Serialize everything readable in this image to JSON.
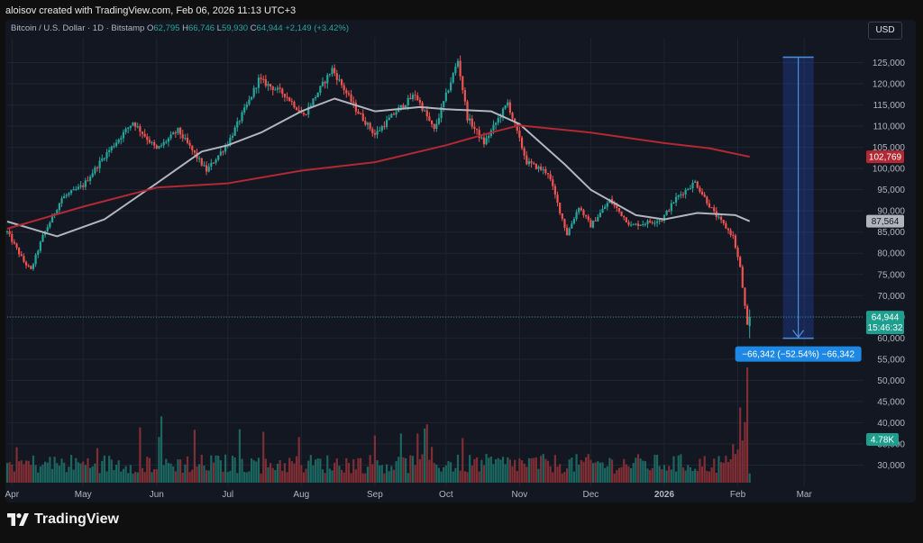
{
  "header": {
    "attribution": "aloisov created with TradingView.com, Feb 06, 2026 11:13 UTC+3"
  },
  "legend": {
    "symbol": "Bitcoin / U.S. Dollar · 1D · Bitstamp",
    "open_key": "O",
    "open": "62,795",
    "high_key": "H",
    "high": "66,746",
    "low_key": "L",
    "low": "59,930",
    "close_key": "C",
    "close": "64,944",
    "change": "+2,149 (+3.42%)"
  },
  "currency": "USD",
  "brand": {
    "name": "TradingView"
  },
  "colors": {
    "background": "#131722",
    "up": "#26a69a",
    "down": "#ef5350",
    "ma_short": "#b2b5be",
    "ma_long": "#b22833",
    "measure": "#2962ff"
  },
  "chart_data": {
    "type": "candlestick",
    "symbol": "BTCUSD",
    "interval": "1D",
    "y_axis": {
      "ticks": [
        30000,
        35000,
        40000,
        45000,
        50000,
        55000,
        60000,
        65000,
        70000,
        75000,
        80000,
        85000,
        90000,
        95000,
        100000,
        105000,
        110000,
        115000,
        120000,
        125000
      ],
      "tick_labels": [
        "30,000",
        "35,000",
        "40,000",
        "45,000",
        "50,000",
        "55,000",
        "60,000",
        "65,000",
        "70,000",
        "75,000",
        "80,000",
        "85,000",
        "90,000",
        "95,000",
        "100,000",
        "105,000",
        "110,000",
        "115,000",
        "120,000",
        "125,000"
      ],
      "range": [
        25000,
        130000
      ]
    },
    "x_axis": {
      "labels": [
        "Apr",
        "May",
        "Jun",
        "Jul",
        "Aug",
        "Sep",
        "Oct",
        "Nov",
        "Dec",
        "2026",
        "Feb",
        "Mar"
      ],
      "label_dates": [
        "2025-04-01",
        "2025-05-01",
        "2025-06-01",
        "2025-07-01",
        "2025-08-01",
        "2025-09-01",
        "2025-10-01",
        "2025-11-01",
        "2025-12-01",
        "2026-01-01",
        "2026-02-01",
        "2026-03-01"
      ],
      "bold_label": "2026",
      "range": [
        "2025-03-30",
        "2026-03-26"
      ]
    },
    "price_path": [
      [
        "2025-03-30",
        85000
      ],
      [
        "2025-04-06",
        78000
      ],
      [
        "2025-04-09",
        76000
      ],
      [
        "2025-04-14",
        84000
      ],
      [
        "2025-04-22",
        93000
      ],
      [
        "2025-05-01",
        96000
      ],
      [
        "2025-05-10",
        103000
      ],
      [
        "2025-05-22",
        111000
      ],
      [
        "2025-06-01",
        104500
      ],
      [
        "2025-06-10",
        109000
      ],
      [
        "2025-06-22",
        99500
      ],
      [
        "2025-07-01",
        106000
      ],
      [
        "2025-07-10",
        116000
      ],
      [
        "2025-07-14",
        121000
      ],
      [
        "2025-07-25",
        117500
      ],
      [
        "2025-08-02",
        112500
      ],
      [
        "2025-08-14",
        123500
      ],
      [
        "2025-08-24",
        114000
      ],
      [
        "2025-09-01",
        108000
      ],
      [
        "2025-09-10",
        113500
      ],
      [
        "2025-09-18",
        117500
      ],
      [
        "2025-09-26",
        109000
      ],
      [
        "2025-10-06",
        125500
      ],
      [
        "2025-10-10",
        112000
      ],
      [
        "2025-10-17",
        106000
      ],
      [
        "2025-10-27",
        115500
      ],
      [
        "2025-11-04",
        101500
      ],
      [
        "2025-11-13",
        99000
      ],
      [
        "2025-11-21",
        84500
      ],
      [
        "2025-11-26",
        91000
      ],
      [
        "2025-12-01",
        86500
      ],
      [
        "2025-12-09",
        92500
      ],
      [
        "2025-12-18",
        86500
      ],
      [
        "2025-12-31",
        88000
      ],
      [
        "2026-01-06",
        93000
      ],
      [
        "2026-01-14",
        96800
      ],
      [
        "2026-01-22",
        89500
      ],
      [
        "2026-01-30",
        84000
      ],
      [
        "2026-02-02",
        76500
      ],
      [
        "2026-02-05",
        62795
      ],
      [
        "2026-02-06",
        64944
      ]
    ],
    "series": [
      {
        "name": "MA short",
        "values": [
          [
            "2025-03-30",
            87500
          ],
          [
            "2025-04-20",
            84000
          ],
          [
            "2025-05-10",
            88000
          ],
          [
            "2025-06-01",
            96500
          ],
          [
            "2025-06-20",
            104000
          ],
          [
            "2025-07-01",
            105500
          ],
          [
            "2025-07-15",
            108500
          ],
          [
            "2025-08-01",
            113500
          ],
          [
            "2025-08-15",
            116500
          ],
          [
            "2025-09-01",
            113500
          ],
          [
            "2025-09-20",
            114500
          ],
          [
            "2025-10-01",
            114000
          ],
          [
            "2025-10-20",
            113500
          ],
          [
            "2025-11-01",
            110500
          ],
          [
            "2025-11-20",
            101000
          ],
          [
            "2025-12-01",
            95000
          ],
          [
            "2025-12-20",
            89000
          ],
          [
            "2026-01-01",
            88000
          ],
          [
            "2026-01-15",
            89500
          ],
          [
            "2026-01-31",
            89000
          ],
          [
            "2026-02-06",
            87564
          ]
        ]
      },
      {
        "name": "MA long",
        "values": [
          [
            "2025-03-30",
            85800
          ],
          [
            "2025-05-01",
            91000
          ],
          [
            "2025-06-01",
            95500
          ],
          [
            "2025-07-01",
            96500
          ],
          [
            "2025-08-01",
            99500
          ],
          [
            "2025-09-01",
            101500
          ],
          [
            "2025-10-01",
            105500
          ],
          [
            "2025-10-20",
            108500
          ],
          [
            "2025-11-01",
            110200
          ],
          [
            "2025-12-01",
            108500
          ],
          [
            "2026-01-01",
            106000
          ],
          [
            "2026-01-20",
            104800
          ],
          [
            "2026-02-06",
            102769
          ]
        ]
      }
    ],
    "volume": {
      "spike_date": "2026-02-05",
      "last_label": "4.78K",
      "axis_label_value": 4.78
    },
    "price_labels": [
      {
        "value": 102769,
        "text": "102,769",
        "kind": "ma_long"
      },
      {
        "value": 87564,
        "text": "87,564",
        "kind": "ma_short"
      },
      {
        "value": 64944,
        "text": "64,944",
        "kind": "last",
        "countdown": "15:46:32"
      }
    ],
    "measure": {
      "start_date": "2026-02-20",
      "end_date": "2026-03-05",
      "from_price": 126286,
      "to_price": 59944,
      "label": "−66,342 (−52.54%) −66,342"
    }
  }
}
